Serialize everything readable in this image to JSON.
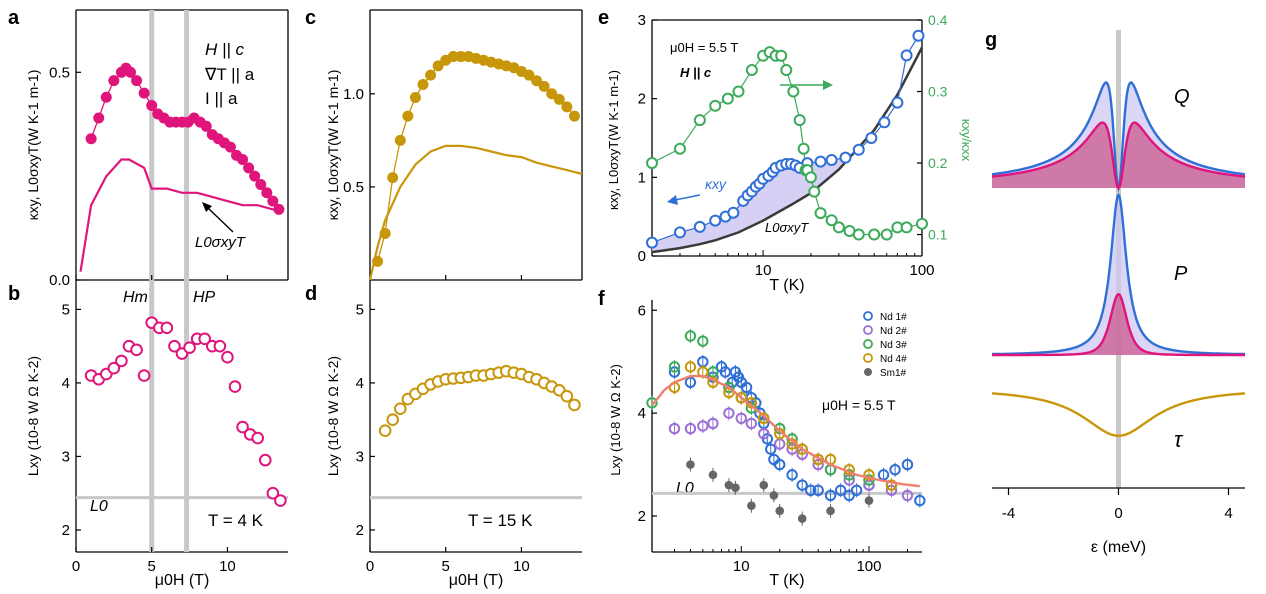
{
  "figure": {
    "colors": {
      "pink": "#e0157c",
      "gold": "#c8960a",
      "blue": "#2f6fd6",
      "green": "#3caa5a",
      "purple": "#9c6fd6",
      "dark": "#3a3a3a",
      "gray": "#666666",
      "salmon": "#ef7f6e",
      "fill": "#cfc8f3",
      "redfill": "#c95a8c",
      "refline": "#c8c8c8"
    }
  },
  "chart_data": [
    {
      "id": "a",
      "type": "scatter",
      "panel_label": "a",
      "ylabel": "κxy, L0σxyT(W K-1 m-1)",
      "ylim": [
        0,
        0.65
      ],
      "xlim": [
        0,
        14
      ],
      "yticks": [
        {
          "v": 0,
          "label": "0.0"
        },
        {
          "v": 0.5,
          "label": "0.5"
        }
      ],
      "annotations": [
        "H || c",
        "∇T || a",
        "I || a"
      ],
      "curve_label": "L0σxyT",
      "ref_lines_x": [
        5,
        7.3
      ],
      "series": [
        {
          "name": "κxy",
          "marker": "filled",
          "color": "pink",
          "x": [
            1,
            1.5,
            2,
            2.5,
            3,
            3.3,
            3.6,
            4,
            4.5,
            5,
            5.4,
            5.8,
            6.2,
            6.6,
            7,
            7.4,
            7.8,
            8.2,
            8.6,
            9,
            9.4,
            9.8,
            10.2,
            10.6,
            11,
            11.4,
            11.8,
            12.2,
            12.6,
            13,
            13.4
          ],
          "y": [
            0.34,
            0.39,
            0.44,
            0.48,
            0.5,
            0.51,
            0.5,
            0.48,
            0.45,
            0.42,
            0.4,
            0.39,
            0.38,
            0.38,
            0.38,
            0.38,
            0.39,
            0.38,
            0.37,
            0.35,
            0.34,
            0.33,
            0.32,
            0.3,
            0.29,
            0.27,
            0.25,
            0.23,
            0.21,
            0.19,
            0.17
          ]
        },
        {
          "name": "L0σxyT",
          "marker": "line",
          "color": "pink",
          "x": [
            0.3,
            1,
            2,
            3,
            3.5,
            4.5,
            4.8,
            5,
            5.5,
            6,
            7,
            8,
            9,
            10,
            11,
            12,
            13,
            13.7
          ],
          "y": [
            0.02,
            0.18,
            0.25,
            0.29,
            0.29,
            0.27,
            0.24,
            0.22,
            0.22,
            0.22,
            0.21,
            0.21,
            0.2,
            0.19,
            0.18,
            0.18,
            0.17,
            0.17
          ]
        }
      ]
    },
    {
      "id": "b",
      "type": "scatter",
      "panel_label": "b",
      "xlabel": "μ0H (T)",
      "ylabel": "Lxy (10-8 W Ω K-2)",
      "ylim": [
        1.7,
        5.4
      ],
      "xlim": [
        0,
        14
      ],
      "xticks": [
        0,
        5,
        10
      ],
      "yticks": [
        2,
        3,
        4,
        5
      ],
      "annotations": [
        "Hm",
        "HP",
        "L0",
        "T = 4 K"
      ],
      "L0": 2.44,
      "ref_lines_x": [
        5,
        7.3
      ],
      "series": [
        {
          "name": "Lxy",
          "marker": "open",
          "color": "pink",
          "x": [
            1,
            1.5,
            2,
            2.5,
            3,
            3.5,
            4,
            4.5,
            5,
            5.5,
            6,
            6.5,
            7,
            7.5,
            8,
            8.5,
            9,
            9.5,
            10,
            10.5,
            11,
            11.5,
            12,
            12.5,
            13,
            13.5
          ],
          "y": [
            4.1,
            4.05,
            4.12,
            4.2,
            4.3,
            4.5,
            4.45,
            4.1,
            4.82,
            4.75,
            4.75,
            4.5,
            4.4,
            4.48,
            4.6,
            4.6,
            4.5,
            4.5,
            4.35,
            3.95,
            3.4,
            3.3,
            3.25,
            2.95,
            2.5,
            2.4
          ]
        }
      ]
    },
    {
      "id": "c",
      "type": "scatter",
      "panel_label": "c",
      "ylabel": "κxy, L0σxyT(W K-1 m-1)",
      "ylim": [
        0,
        1.45
      ],
      "xlim": [
        0,
        14
      ],
      "yticks": [
        {
          "v": 0.5,
          "label": "0.5"
        },
        {
          "v": 1.0,
          "label": "1.0"
        }
      ],
      "series": [
        {
          "name": "κxy",
          "marker": "filled",
          "color": "gold",
          "x": [
            0.5,
            1,
            1.5,
            2,
            2.5,
            3,
            3.5,
            4,
            4.5,
            5,
            5.5,
            6,
            6.5,
            7,
            7.5,
            8,
            8.5,
            9,
            9.5,
            10,
            10.5,
            11,
            11.5,
            12,
            12.5,
            13,
            13.5
          ],
          "y": [
            0.1,
            0.25,
            0.55,
            0.75,
            0.88,
            0.98,
            1.05,
            1.1,
            1.15,
            1.18,
            1.2,
            1.2,
            1.2,
            1.19,
            1.18,
            1.17,
            1.16,
            1.15,
            1.14,
            1.12,
            1.1,
            1.07,
            1.04,
            1.0,
            0.97,
            0.93,
            0.88
          ]
        },
        {
          "name": "L0σxyT",
          "marker": "line",
          "color": "gold",
          "x": [
            0,
            0.5,
            1,
            2,
            3,
            4,
            5,
            6,
            7,
            8,
            9,
            10,
            11,
            12,
            13,
            14
          ],
          "y": [
            0,
            0.18,
            0.32,
            0.5,
            0.62,
            0.69,
            0.72,
            0.72,
            0.71,
            0.69,
            0.67,
            0.66,
            0.63,
            0.61,
            0.59,
            0.57
          ]
        }
      ]
    },
    {
      "id": "d",
      "type": "scatter",
      "panel_label": "d",
      "xlabel": "μ0H (T)",
      "ylabel": "Lxy (10-8 W Ω K-2)",
      "ylim": [
        1.7,
        5.4
      ],
      "xlim": [
        0,
        14
      ],
      "xticks": [
        0,
        5,
        10
      ],
      "yticks": [
        2,
        3,
        4,
        5
      ],
      "annotations": [
        "T = 15 K"
      ],
      "L0": 2.44,
      "series": [
        {
          "name": "Lxy",
          "marker": "open",
          "color": "gold",
          "x": [
            1,
            1.5,
            2,
            2.5,
            3,
            3.5,
            4,
            4.5,
            5,
            5.5,
            6,
            6.5,
            7,
            7.5,
            8,
            8.5,
            9,
            9.5,
            10,
            10.5,
            11,
            11.5,
            12,
            12.5,
            13,
            13.5
          ],
          "y": [
            3.35,
            3.5,
            3.65,
            3.78,
            3.85,
            3.92,
            3.98,
            4.02,
            4.05,
            4.06,
            4.07,
            4.08,
            4.1,
            4.1,
            4.12,
            4.14,
            4.16,
            4.14,
            4.12,
            4.08,
            4.05,
            4.0,
            3.95,
            3.9,
            3.82,
            3.7
          ]
        }
      ]
    },
    {
      "id": "e",
      "type": "scatter",
      "panel_label": "e",
      "xlabel": "T (K)",
      "ylabel": "κxy, L0σxyT(W K-1 m-1)",
      "ylabel_right": "κxy/κxx",
      "xscale": "log",
      "xlim": [
        2,
        100
      ],
      "ylim": [
        0,
        3
      ],
      "ylim_right": [
        0.07,
        0.4
      ],
      "xticks": [
        {
          "v": 10,
          "label": "10"
        },
        {
          "v": 100,
          "label": "100"
        }
      ],
      "yticks": [
        0,
        1,
        2,
        3
      ],
      "yticks_right": [
        0.1,
        0.2,
        0.3,
        0.4
      ],
      "annotations": [
        "μ0H = 5.5 T",
        "H || c",
        "κxy",
        "L0σxyT"
      ],
      "series": [
        {
          "name": "κxy",
          "marker": "open",
          "color": "blue",
          "axis": "left",
          "x": [
            2,
            3,
            4,
            5,
            5.8,
            6.5,
            7.5,
            8,
            8.5,
            9,
            9.5,
            10,
            10.8,
            11.5,
            12,
            13,
            14,
            15,
            16,
            17,
            19,
            23,
            27,
            33,
            40,
            48,
            58,
            70,
            80,
            95
          ],
          "y": [
            0.17,
            0.3,
            0.37,
            0.45,
            0.5,
            0.55,
            0.7,
            0.77,
            0.82,
            0.88,
            0.92,
            0.98,
            1.02,
            1.07,
            1.12,
            1.15,
            1.17,
            1.17,
            1.15,
            1.12,
            1.18,
            1.2,
            1.22,
            1.25,
            1.35,
            1.5,
            1.7,
            1.95,
            2.55,
            2.8
          ]
        },
        {
          "name": "L0σxyT",
          "marker": "line",
          "color": "dark",
          "axis": "left",
          "x": [
            2,
            3,
            4,
            5,
            7,
            10,
            15,
            20,
            30,
            50,
            70,
            100
          ],
          "y": [
            0.05,
            0.1,
            0.15,
            0.2,
            0.3,
            0.45,
            0.65,
            0.8,
            1.1,
            1.6,
            2.05,
            2.65
          ]
        },
        {
          "name": "κxy/κxx",
          "marker": "open",
          "color": "green",
          "axis": "right",
          "x": [
            2,
            3,
            4,
            5,
            6,
            7,
            8.5,
            10,
            11,
            12,
            13,
            14,
            15.5,
            17,
            18,
            18.5,
            19,
            20,
            21,
            23,
            27,
            30,
            35,
            40,
            50,
            60,
            70,
            80,
            100
          ],
          "y": [
            0.2,
            0.22,
            0.26,
            0.28,
            0.29,
            0.3,
            0.33,
            0.35,
            0.355,
            0.35,
            0.35,
            0.33,
            0.3,
            0.26,
            0.22,
            0.19,
            0.19,
            0.18,
            0.16,
            0.13,
            0.12,
            0.11,
            0.105,
            0.1,
            0.1,
            0.1,
            0.11,
            0.11,
            0.115
          ]
        }
      ]
    },
    {
      "id": "f",
      "type": "scatter",
      "panel_label": "f",
      "xlabel": "T (K)",
      "ylabel": "Lxy (10-8 W Ω K-2)",
      "xscale": "log",
      "xlim": [
        2,
        260
      ],
      "ylim": [
        1.3,
        6.2
      ],
      "xticks": [
        {
          "v": 10,
          "label": "10"
        },
        {
          "v": 100,
          "label": "100"
        }
      ],
      "yticks": [
        2,
        4,
        6
      ],
      "annotations": [
        "μ0H = 5.5 T",
        "L0"
      ],
      "L0": 2.44,
      "legend": [
        "Nd 1#",
        "Nd 2#",
        "Nd 3#",
        "Nd 4#",
        "Sm1#"
      ],
      "series": [
        {
          "name": "Nd 1#",
          "marker": "open",
          "color": "blue",
          "x": [
            3,
            4,
            5,
            6,
            7,
            7.5,
            8,
            8.5,
            9,
            9.5,
            10,
            11,
            12,
            13,
            14,
            15,
            16,
            17,
            18,
            20,
            25,
            30,
            35,
            40,
            50,
            60,
            70,
            80,
            100,
            130,
            160,
            200,
            250
          ],
          "y": [
            4.8,
            4.6,
            5.0,
            4.7,
            4.9,
            4.8,
            4.5,
            4.6,
            4.8,
            4.7,
            4.6,
            4.5,
            4.3,
            4.2,
            4.0,
            3.8,
            3.5,
            3.3,
            3.1,
            3.0,
            2.8,
            2.6,
            2.5,
            2.5,
            2.4,
            2.5,
            2.4,
            2.5,
            2.6,
            2.8,
            2.9,
            3.0,
            2.3
          ]
        },
        {
          "name": "Nd 2#",
          "marker": "open",
          "color": "purple",
          "x": [
            3,
            4,
            5,
            6,
            8,
            10,
            12,
            15,
            20,
            25,
            30,
            40,
            50,
            70,
            100,
            150,
            200
          ],
          "y": [
            3.7,
            3.7,
            3.75,
            3.8,
            4.0,
            3.9,
            3.8,
            3.6,
            3.4,
            3.3,
            3.2,
            3.0,
            2.9,
            2.7,
            2.6,
            2.5,
            2.4
          ]
        },
        {
          "name": "Nd 3#",
          "marker": "open",
          "color": "green",
          "x": [
            2,
            3,
            4,
            5,
            6,
            8,
            10,
            12,
            15,
            20,
            25,
            30,
            40,
            50,
            70,
            100,
            150
          ],
          "y": [
            4.2,
            4.9,
            5.5,
            5.4,
            4.8,
            4.5,
            4.3,
            4.1,
            3.9,
            3.7,
            3.5,
            3.3,
            3.1,
            2.9,
            2.8,
            2.7,
            2.6
          ]
        },
        {
          "name": "Nd 4#",
          "marker": "open",
          "color": "gold",
          "x": [
            3,
            4,
            5,
            6,
            8,
            10,
            12,
            15,
            20,
            25,
            30,
            40,
            50,
            70,
            100,
            150
          ],
          "y": [
            4.5,
            4.9,
            4.8,
            4.6,
            4.4,
            4.3,
            4.2,
            3.9,
            3.6,
            3.4,
            3.3,
            3.1,
            3.1,
            2.9,
            2.8,
            2.6
          ]
        },
        {
          "name": "Sm1#",
          "marker": "filled",
          "color": "gray",
          "x": [
            4,
            6,
            8,
            9,
            12,
            15,
            18,
            20,
            30,
            50,
            100
          ],
          "y": [
            3.0,
            2.8,
            2.6,
            2.55,
            2.2,
            2.6,
            2.4,
            2.1,
            1.95,
            2.1,
            2.3
          ]
        },
        {
          "name": "fit",
          "marker": "line",
          "color": "salmon",
          "x": [
            2,
            2.5,
            3,
            4,
            5,
            6,
            8,
            10,
            15,
            20,
            30,
            50,
            80,
            120,
            180,
            250
          ],
          "y": [
            4.15,
            4.45,
            4.6,
            4.72,
            4.72,
            4.65,
            4.5,
            4.3,
            3.95,
            3.65,
            3.3,
            3.0,
            2.8,
            2.7,
            2.62,
            2.58
          ]
        }
      ]
    },
    {
      "id": "g",
      "type": "line",
      "panel_label": "g",
      "xlabel": "ε (meV)",
      "xlim": [
        -4.6,
        4.6
      ],
      "xticks": [
        -4,
        0,
        4
      ],
      "subplots": [
        {
          "label": "Q",
          "series": [
            {
              "name": "Q outer",
              "color": "blue",
              "fill": "fill",
              "fn": "lor_split",
              "amp": 1.0,
              "width": 0.35
            },
            {
              "name": "Q inner",
              "color": "pink",
              "fill": "redfill",
              "fn": "lor_split",
              "amp": 0.62,
              "width": 0.45
            }
          ]
        },
        {
          "label": "P",
          "series": [
            {
              "name": "P outer",
              "color": "blue",
              "fill": "fill",
              "fn": "lor",
              "amp": 1.0,
              "width": 0.35
            },
            {
              "name": "P inner",
              "color": "pink",
              "fill": "redfill",
              "fn": "lor_flat",
              "amp": 0.38,
              "width": 0.55
            }
          ]
        },
        {
          "label": "τ",
          "series": [
            {
              "name": "τ",
              "color": "gold",
              "fn": "tau",
              "amp": 1.0,
              "width": 1.6
            }
          ]
        }
      ]
    }
  ]
}
